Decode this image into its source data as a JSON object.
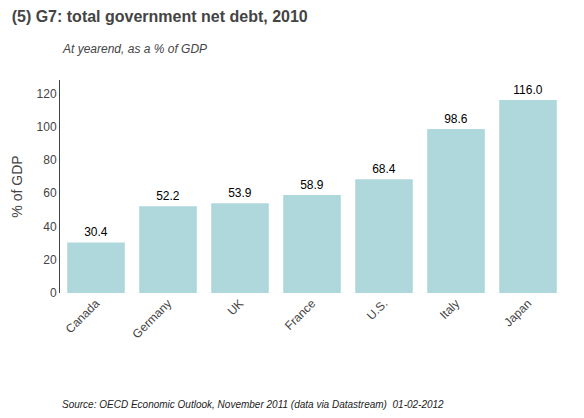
{
  "chart_data": {
    "type": "bar",
    "title": "(5) G7: total government net debt, 2010",
    "subtitle": "At yearend, as a % of GDP",
    "ylabel": "% of GDP",
    "source": "Source: OECD Economic Outlook, November 2011 (data via Datastream)  01-02-2012",
    "categories": [
      "Canada",
      "Germany",
      "UK",
      "France",
      "U.S.",
      "Italy",
      "Japan"
    ],
    "values": [
      30.4,
      52.2,
      53.9,
      58.9,
      68.4,
      98.6,
      116.0
    ],
    "value_labels": [
      "30.4",
      "52.2",
      "53.9",
      "58.9",
      "68.4",
      "98.6",
      "116.0"
    ],
    "data_labels": true,
    "color": "#aed8dc",
    "ylim": [
      0,
      128
    ],
    "yticks": [
      0,
      20,
      40,
      60,
      80,
      100,
      120
    ],
    "grid": false
  }
}
